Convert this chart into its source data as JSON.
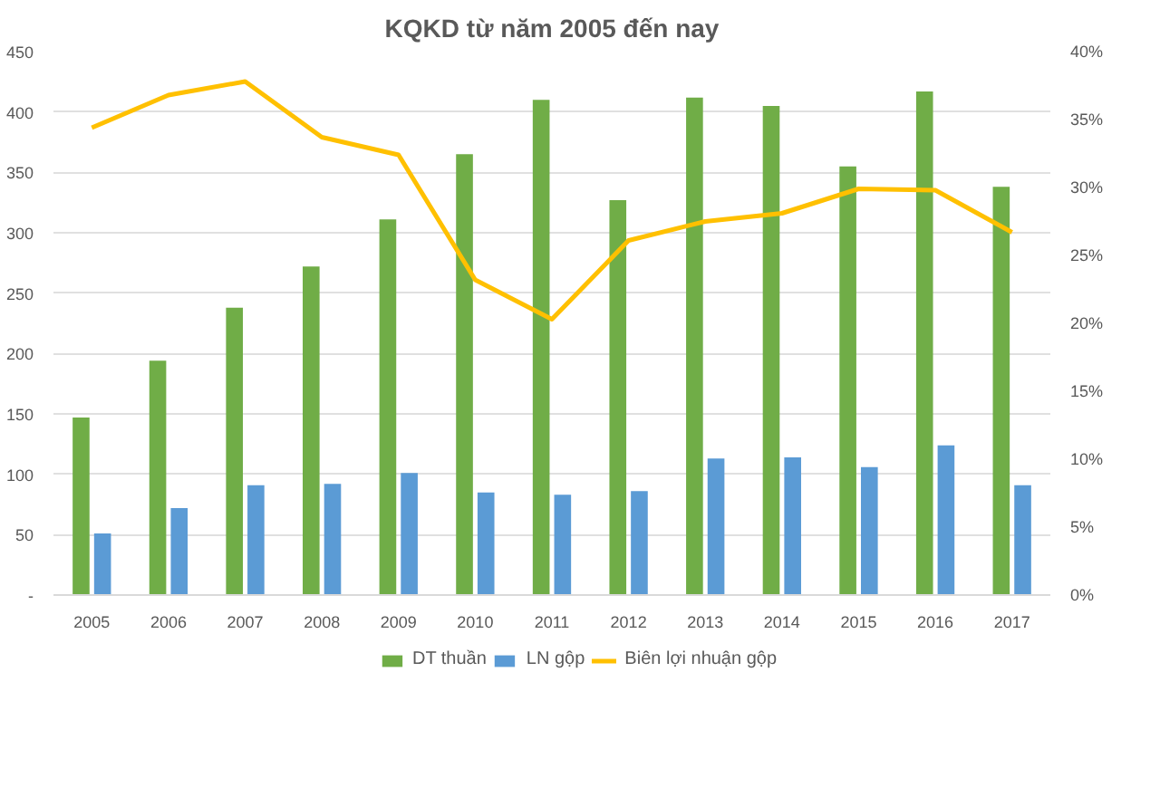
{
  "chart_data": {
    "type": "bar",
    "title": "KQKD từ năm 2005 đến nay",
    "categories": [
      "2005",
      "2006",
      "2007",
      "2008",
      "2009",
      "2010",
      "2011",
      "2012",
      "2013",
      "2014",
      "2015",
      "2016",
      "2017"
    ],
    "series": [
      {
        "name": "DT thuần",
        "color": "#70ad47",
        "values": [
          147,
          194,
          238,
          272,
          311,
          365,
          410,
          327,
          412,
          405,
          355,
          417,
          338
        ]
      },
      {
        "name": "LN gộp",
        "color": "#5b9bd5",
        "values": [
          51,
          72,
          91,
          92,
          101,
          85,
          83,
          86,
          113,
          114,
          106,
          124,
          91
        ]
      },
      {
        "name": "Biên lợi nhuận gộp",
        "color": "#ffc000",
        "type": "line",
        "axis": "y2",
        "values": [
          34.4,
          36.8,
          37.8,
          33.7,
          32.4,
          23.2,
          20.3,
          26.1,
          27.5,
          28.1,
          29.9,
          29.8,
          26.7
        ]
      }
    ],
    "ylim": [
      0,
      450
    ],
    "yticks": [
      {
        "value": 0,
        "label": "-"
      },
      50,
      100,
      150,
      200,
      250,
      300,
      350,
      400,
      450
    ],
    "y2lim": [
      0,
      40
    ],
    "y2ticks": [
      {
        "value": 0,
        "label": "0%"
      },
      {
        "value": 5,
        "label": "5%"
      },
      {
        "value": 10,
        "label": "10%"
      },
      {
        "value": 15,
        "label": "15%"
      },
      {
        "value": 20,
        "label": "20%"
      },
      {
        "value": 25,
        "label": "25%"
      },
      {
        "value": 30,
        "label": "30%"
      },
      {
        "value": 35,
        "label": "35%"
      },
      {
        "value": 40,
        "label": "40%"
      }
    ],
    "grid": "y",
    "legend": "bottom",
    "marker": "none",
    "line_style": "solid"
  }
}
